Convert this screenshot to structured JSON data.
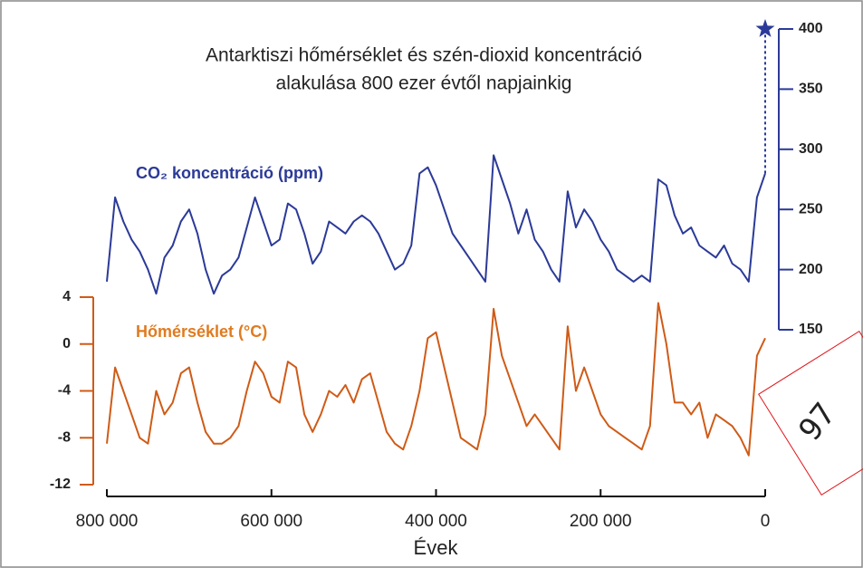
{
  "chart_data": {
    "type": "line",
    "title": [
      "Antarktiszi hőmérséklet és szén-dioxid koncentráció",
      "alakulása 800 ezer évtől napjainkig"
    ],
    "xlabel": "Évek",
    "x": [
      800000,
      790000,
      780000,
      770000,
      760000,
      750000,
      740000,
      730000,
      720000,
      710000,
      700000,
      690000,
      680000,
      670000,
      660000,
      650000,
      640000,
      630000,
      620000,
      610000,
      600000,
      590000,
      580000,
      570000,
      560000,
      550000,
      540000,
      530000,
      520000,
      510000,
      500000,
      490000,
      480000,
      470000,
      460000,
      450000,
      440000,
      430000,
      420000,
      410000,
      400000,
      390000,
      380000,
      370000,
      360000,
      350000,
      340000,
      330000,
      320000,
      310000,
      300000,
      290000,
      280000,
      270000,
      260000,
      250000,
      240000,
      230000,
      220000,
      210000,
      200000,
      190000,
      180000,
      170000,
      160000,
      150000,
      140000,
      130000,
      120000,
      110000,
      100000,
      90000,
      80000,
      70000,
      60000,
      50000,
      40000,
      30000,
      20000,
      10000,
      0
    ],
    "xlim": [
      800000,
      0
    ],
    "xticks": [
      {
        "value": 800000,
        "label": "800 000"
      },
      {
        "value": 600000,
        "label": "600 000"
      },
      {
        "value": 400000,
        "label": "400 000"
      },
      {
        "value": 200000,
        "label": "200 000"
      },
      0
    ],
    "ylim": [
      -12,
      4
    ],
    "yticks": [
      4,
      0,
      -4,
      -8,
      -12
    ],
    "y2lim": [
      150,
      400
    ],
    "y2ticks": [
      150,
      200,
      250,
      300,
      350,
      400
    ],
    "series": [
      {
        "name": "CO₂ koncentráció (ppm)",
        "color": "#2b3a98",
        "axis": "y2",
        "values": [
          190,
          260,
          240,
          225,
          215,
          200,
          180,
          210,
          220,
          240,
          250,
          230,
          200,
          180,
          195,
          200,
          210,
          235,
          260,
          240,
          220,
          225,
          255,
          250,
          230,
          205,
          215,
          240,
          235,
          230,
          240,
          245,
          240,
          230,
          215,
          200,
          205,
          220,
          280,
          285,
          270,
          250,
          230,
          220,
          210,
          200,
          190,
          295,
          275,
          255,
          230,
          250,
          225,
          215,
          200,
          190,
          265,
          235,
          250,
          240,
          225,
          215,
          200,
          195,
          190,
          195,
          190,
          275,
          270,
          245,
          230,
          235,
          220,
          215,
          210,
          220,
          205,
          200,
          190,
          260,
          280
        ]
      },
      {
        "name": "Hőmérséklet (°C)",
        "color": "#cf5b17",
        "axis": "y",
        "values": [
          -8.5,
          -2,
          -4,
          -6,
          -8,
          -8.5,
          -4,
          -6,
          -5,
          -2.5,
          -2,
          -5,
          -7.5,
          -8.5,
          -8.5,
          -8,
          -7,
          -4,
          -1.5,
          -2.5,
          -4.5,
          -5,
          -1.5,
          -2,
          -6,
          -7.5,
          -6,
          -4,
          -4.5,
          -3.5,
          -5,
          -3,
          -2.5,
          -5,
          -7.5,
          -8.5,
          -9,
          -7,
          -4,
          0.5,
          1,
          -2,
          -5,
          -8,
          -8.5,
          -9,
          -6,
          3,
          -1,
          -3,
          -5,
          -7,
          -6,
          -7,
          -8,
          -9,
          1.5,
          -4,
          -2,
          -4,
          -6,
          -7,
          -7.5,
          -8,
          -8.5,
          -9,
          -7,
          3.5,
          0,
          -5,
          -5,
          -6,
          -5,
          -8,
          -6,
          -6.5,
          -7,
          -8,
          -9.5,
          -1,
          0.5
        ]
      }
    ],
    "marker": {
      "x": 0,
      "value": 400
    },
    "overlay_label": "97"
  }
}
